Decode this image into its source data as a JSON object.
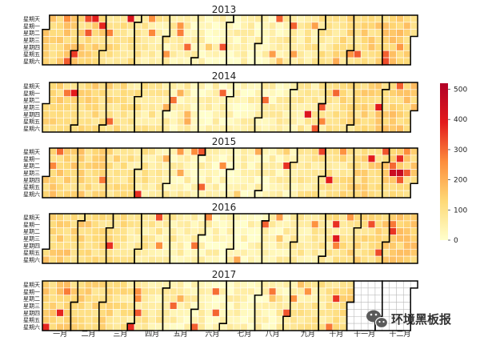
{
  "chart_data": {
    "type": "heatmap",
    "title": "",
    "years": [
      {
        "year": "2013",
        "title": "2013",
        "start_weekday": 2,
        "days_in_year": 365,
        "end_day": 365,
        "seed": 13
      },
      {
        "year": "2014",
        "title": "2014",
        "start_weekday": 3,
        "days_in_year": 365,
        "end_day": 365,
        "seed": 14
      },
      {
        "year": "2015",
        "title": "2015",
        "start_weekday": 4,
        "days_in_year": 365,
        "end_day": 365,
        "seed": 15
      },
      {
        "year": "2016",
        "title": "2016",
        "start_weekday": 5,
        "days_in_year": 366,
        "end_day": 366,
        "seed": 16
      },
      {
        "year": "2017",
        "title": "2017",
        "start_weekday": 0,
        "days_in_year": 365,
        "end_day": 304,
        "seed": 17
      }
    ],
    "day_labels": [
      "星期天",
      "星期一",
      "星期二",
      "星期三",
      "星期四",
      "星期五",
      "星期六"
    ],
    "month_labels": [
      "一月",
      "二月",
      "三月",
      "四月",
      "五月",
      "六月",
      "七月",
      "八月",
      "九月",
      "十月",
      "十一月",
      "十二月"
    ],
    "colorbar": {
      "min": 0,
      "max": 520,
      "ticks": [
        0,
        100,
        200,
        300,
        400,
        500
      ],
      "colors": [
        "#ffffcc",
        "#fed976",
        "#fd8d3c",
        "#e31a1c",
        "#b10026"
      ]
    },
    "value_range": [
      0,
      500
    ]
  },
  "watermark": {
    "text": "环境黑板报",
    "icon": "wechat-icon"
  }
}
